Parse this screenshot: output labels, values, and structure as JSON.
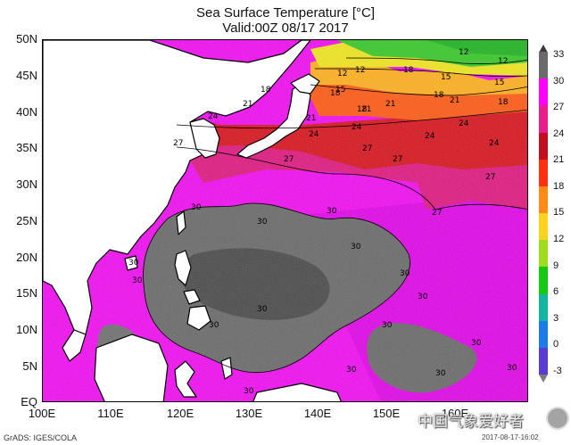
{
  "title": "Sea Surface Temperature [°C]",
  "valid": "Valid:00Z 08/17 2017",
  "lat_labels": [
    "50N",
    "45N",
    "40N",
    "35N",
    "30N",
    "25N",
    "20N",
    "15N",
    "10N",
    "5N",
    "EQ"
  ],
  "lon_labels": [
    "100E",
    "110E",
    "120E",
    "130E",
    "140E",
    "150E",
    "160E"
  ],
  "colorbar": {
    "labels": [
      "33",
      "30",
      "27",
      "24",
      "21",
      "18",
      "15",
      "12",
      "9",
      "6",
      "3",
      "0",
      "-3"
    ],
    "colors": [
      "#3a3a3a",
      "#6a6a6a",
      "#ff00ff",
      "#e81e8c",
      "#c0101e",
      "#ff3010",
      "#ff8a14",
      "#ffd21e",
      "#a0dc1e",
      "#14c814",
      "#14b4a0",
      "#1e7ae6",
      "#5a3cd2",
      "#7c7c7c"
    ]
  },
  "contour_labels": {
    "thirty": "30",
    "twentyseven": "27",
    "twentyfour": "24",
    "twentyone": "21",
    "eighteen": "18",
    "fifteen": "15",
    "twelve": "12"
  },
  "credit": "GrADS: IGES/COLA",
  "watermark": "中国气象爱好者",
  "timestamp": "2017-08-17-16:02"
}
